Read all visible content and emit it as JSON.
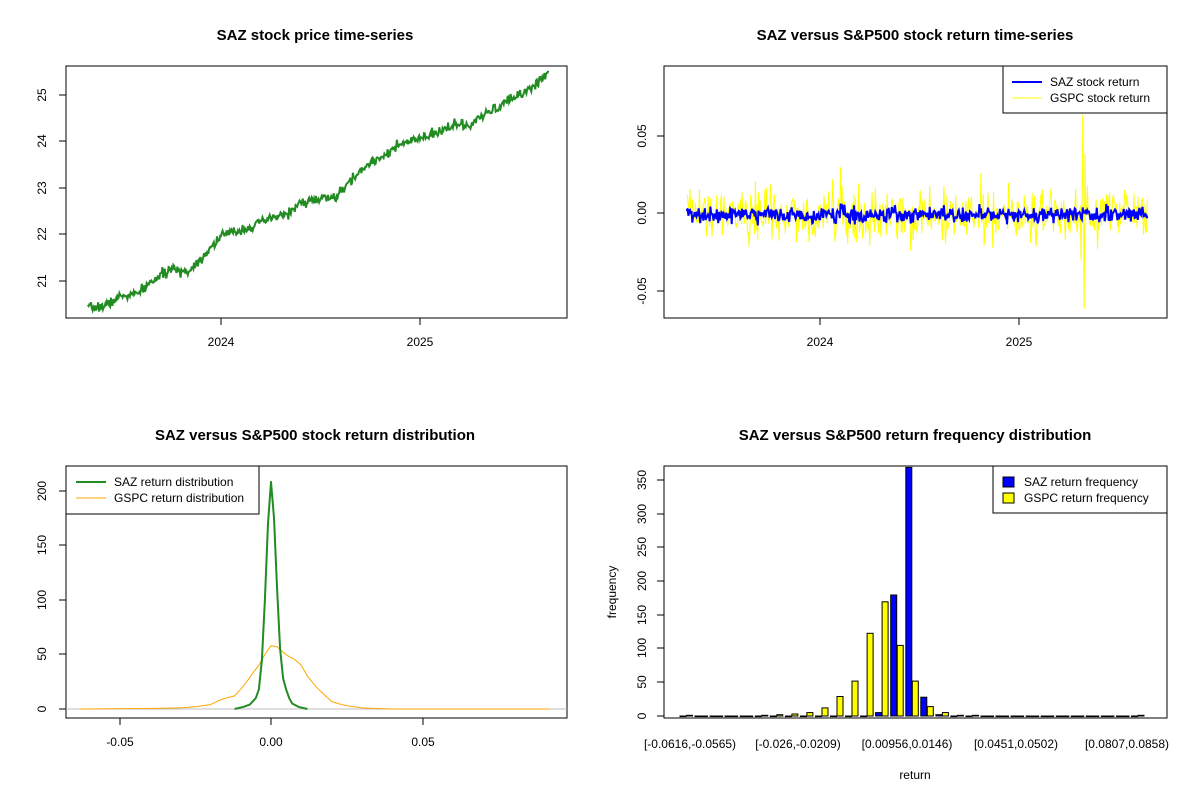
{
  "chart_data": [
    {
      "id": "price",
      "type": "line",
      "title": "SAZ stock price time-series",
      "xlabel": "",
      "ylabel": "",
      "x_ticks": [
        "2024",
        "2025"
      ],
      "y_ticks": [
        "21",
        "22",
        "23",
        "24",
        "25"
      ],
      "xlim": [
        "2023-04-25",
        "2025-09-05"
      ],
      "ylim": [
        20.3,
        25.5
      ],
      "series": [
        {
          "color": "#228B22",
          "x": [
            "2023-05-01",
            "2023-06-01",
            "2023-07-01",
            "2023-08-01",
            "2023-09-01",
            "2023-10-01",
            "2023-11-01",
            "2023-12-01",
            "2024-01-01",
            "2024-02-01",
            "2024-03-01",
            "2024-04-01",
            "2024-05-01",
            "2024-06-01",
            "2024-07-01",
            "2024-08-01",
            "2024-09-01",
            "2024-10-01",
            "2024-11-01",
            "2024-12-01",
            "2025-01-01",
            "2025-02-01",
            "2025-03-01",
            "2025-04-01",
            "2025-05-01",
            "2025-06-01",
            "2025-07-01",
            "2025-08-01",
            "2025-08-25"
          ],
          "y": [
            20.5,
            20.55,
            20.75,
            20.8,
            21.1,
            21.3,
            21.25,
            21.6,
            22.0,
            22.1,
            22.2,
            22.35,
            22.45,
            22.7,
            22.75,
            22.8,
            23.2,
            23.5,
            23.7,
            23.9,
            24.0,
            24.1,
            24.3,
            24.25,
            24.5,
            24.7,
            24.9,
            25.1,
            25.4
          ]
        }
      ]
    },
    {
      "id": "returns",
      "type": "line",
      "title": "SAZ versus S&P500 stock return time-series",
      "xlabel": "",
      "ylabel": "",
      "x_ticks": [
        "2024",
        "2025"
      ],
      "y_ticks": [
        "-0.05",
        "0.00",
        "0.05"
      ],
      "ylim": [
        -0.068,
        0.098
      ],
      "legend": "top-right",
      "series": [
        {
          "name": "SAZ stock return",
          "color": "#0000FF",
          "typical_amplitude": 0.005
        },
        {
          "name": "GSPC stock return",
          "color": "#FFFF00",
          "typical_amplitude": 0.015,
          "max": 0.066,
          "min": -0.062
        }
      ]
    },
    {
      "id": "density",
      "type": "line",
      "title": "SAZ versus S&P500 stock return distribution",
      "xlabel": "",
      "ylabel": "",
      "x_ticks": [
        "-0.05",
        "0.00",
        "0.05"
      ],
      "y_ticks": [
        "0",
        "50",
        "100",
        "150",
        "200"
      ],
      "xlim": [
        -0.065,
        0.097
      ],
      "ylim": [
        -8,
        222
      ],
      "legend": "top-left",
      "series": [
        {
          "name": "SAZ return distribution",
          "color": "#228B22",
          "x": [
            -0.012,
            -0.009,
            -0.007,
            -0.005,
            -0.004,
            -0.003,
            -0.002,
            -0.001,
            0,
            0.001,
            0.002,
            0.003,
            0.004,
            0.005,
            0.006,
            0.007,
            0.009,
            0.012
          ],
          "y": [
            0,
            2,
            4,
            10,
            18,
            45,
            100,
            170,
            208,
            175,
            110,
            55,
            28,
            18,
            10,
            5,
            2,
            0
          ]
        },
        {
          "name": "GSPC return distribution",
          "color": "#FFA500",
          "x": [
            -0.063,
            -0.04,
            -0.03,
            -0.025,
            -0.02,
            -0.017,
            -0.015,
            -0.012,
            -0.01,
            -0.008,
            -0.006,
            -0.004,
            -0.002,
            0,
            0.002,
            0.004,
            0.006,
            0.008,
            0.01,
            0.012,
            0.015,
            0.018,
            0.02,
            0.022,
            0.025,
            0.03,
            0.035,
            0.04,
            0.06,
            0.092
          ],
          "y": [
            0,
            0.5,
            1,
            2,
            4,
            8,
            10,
            12,
            18,
            25,
            33,
            40,
            50,
            58,
            57,
            52,
            48,
            45,
            40,
            30,
            20,
            12,
            7,
            5,
            3,
            1,
            0.5,
            0,
            0,
            0
          ]
        }
      ]
    },
    {
      "id": "histogram",
      "type": "bar",
      "title": "SAZ versus S&P500 return frequency distribution",
      "xlabel": "return",
      "ylabel": "frequency",
      "x_ticks": [
        "[-0.0616,-0.0565)",
        "[-0.026,-0.0209)",
        "[0.00956,0.0146)",
        "[0.0451,0.0502)",
        "[0.0807,0.0858)"
      ],
      "y_ticks": [
        "0",
        "50",
        "100",
        "150",
        "200",
        "250",
        "300",
        "350"
      ],
      "ylim": [
        0,
        370
      ],
      "legend": "top-right",
      "bins": 31,
      "series": [
        {
          "name": "SAZ return frequency",
          "color": "#0000FF",
          "values": [
            0,
            0,
            0,
            0,
            0,
            0,
            0,
            0,
            0,
            0,
            0,
            0,
            0,
            5,
            180,
            370,
            28,
            2,
            0,
            0,
            0,
            0,
            0,
            0,
            0,
            0,
            0,
            0,
            0,
            0,
            0
          ]
        },
        {
          "name": "GSPC return frequency",
          "color": "#FFFF00",
          "values": [
            1,
            0,
            0,
            0,
            0,
            1,
            2,
            3,
            5,
            12,
            29,
            52,
            123,
            170,
            105,
            52,
            14,
            5,
            1,
            1,
            0,
            0,
            0,
            0,
            0,
            0,
            0,
            0,
            0,
            0,
            1
          ]
        }
      ]
    }
  ]
}
